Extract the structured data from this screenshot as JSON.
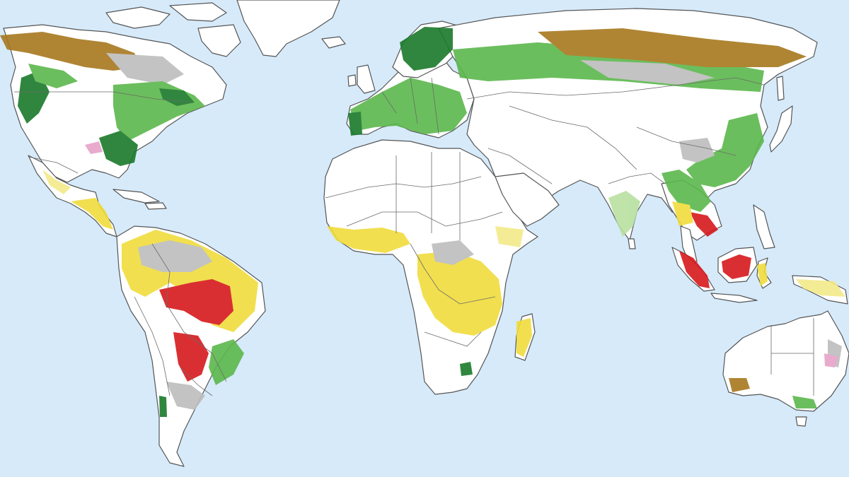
{
  "colors": {
    "ocean": "#d6eafa",
    "land": "#ffffff",
    "coastline": "#555555",
    "loss_high": "#d7191c",
    "loss_moderate": "#f0dc3c",
    "loss_light": "#f3e98a",
    "gain_strong": "#1a7a2a",
    "gain_moderate": "#5cb84c",
    "gain_light": "#b8e0a0",
    "no_change": "#bdbdbd",
    "boreal_brown": "#a7781f",
    "pink": "#e6a3c8"
  }
}
